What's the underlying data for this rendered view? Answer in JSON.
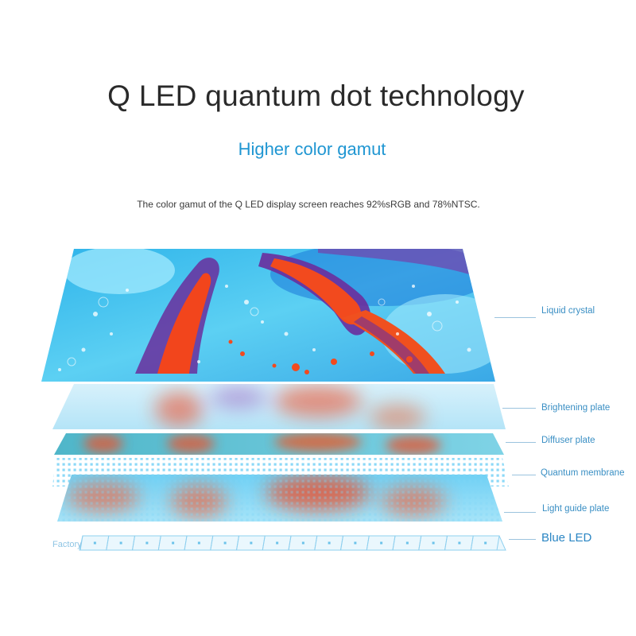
{
  "header": {
    "title": "Q LED quantum dot technology",
    "subtitle": "Higher color gamut",
    "caption": "The color gamut of the Q LED display screen reaches 92%sRGB and 78%NTSC."
  },
  "layers": [
    {
      "label": "Liquid crystal"
    },
    {
      "label": "Brightening plate"
    },
    {
      "label": "Diffuser plate"
    },
    {
      "label": "Quantum membrane"
    },
    {
      "label": "Light guide plate"
    },
    {
      "label": "Blue LED"
    }
  ],
  "factory_label": "Factory",
  "colors": {
    "accent": "#1f96d2",
    "cyan": "#38c6f0",
    "orange": "#f24a1e",
    "purple": "#6b2f9e"
  }
}
